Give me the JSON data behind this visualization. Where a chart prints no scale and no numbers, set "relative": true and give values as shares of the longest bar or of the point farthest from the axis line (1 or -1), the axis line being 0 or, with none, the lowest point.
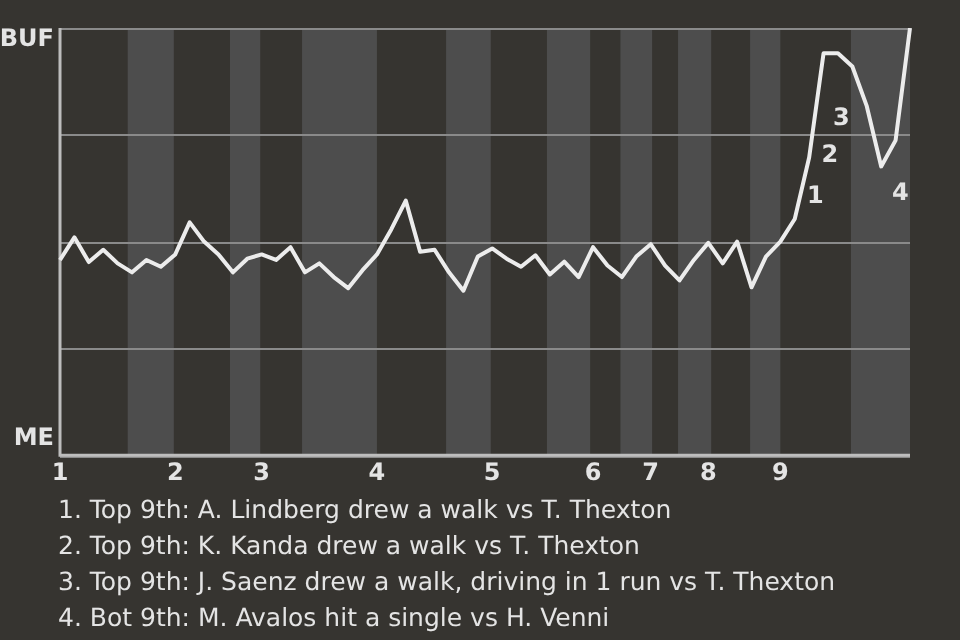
{
  "chart_data": {
    "type": "line",
    "categories": [
      "1",
      null,
      null,
      null,
      null,
      null,
      null,
      null,
      "2",
      null,
      null,
      null,
      null,
      null,
      "3",
      null,
      null,
      null,
      null,
      null,
      null,
      null,
      "4",
      null,
      null,
      null,
      null,
      null,
      null,
      null,
      "5",
      null,
      null,
      null,
      null,
      null,
      null,
      "6",
      null,
      null,
      null,
      "7",
      null,
      null,
      null,
      "8",
      null,
      null,
      null,
      null,
      "9",
      null,
      null,
      null,
      null,
      null,
      null,
      null,
      null,
      null
    ],
    "series": [
      {
        "color": "#ececec",
        "values": [
          0.457,
          0.51,
          0.452,
          0.481,
          0.449,
          0.428,
          0.457,
          0.441,
          0.47,
          0.545,
          0.5,
          0.47,
          0.428,
          0.46,
          0.47,
          0.457,
          0.487,
          0.428,
          0.449,
          0.417,
          0.391,
          0.433,
          0.47,
          0.529,
          0.596,
          0.476,
          0.481,
          0.428,
          0.385,
          0.465,
          0.484,
          0.46,
          0.441,
          0.468,
          0.423,
          0.453,
          0.417,
          0.487,
          0.444,
          0.417,
          0.465,
          0.494,
          0.444,
          0.409,
          0.457,
          0.497,
          0.449,
          0.5,
          0.393,
          0.465,
          0.5,
          0.553,
          0.697,
          0.941,
          0.941,
          0.91,
          0.817,
          0.676,
          0.737,
          1
        ]
      }
    ],
    "relative": true,
    "grid": "y",
    "marker": "none",
    "line_style": "solid",
    "annotations": [
      "BUF",
      "ME",
      "1",
      "2",
      "3",
      "4",
      "1. Top 9th: A. Lindberg drew a walk vs T. Thexton",
      "2. Top 9th: K. Kanda drew a walk vs T. Thexton",
      "3. Top 9th: J. Saenz drew a walk, driving in 1 run vs T. Thexton",
      "4. Bot 9th: M. Avalos hit a single vs H. Venni"
    ]
  }
}
